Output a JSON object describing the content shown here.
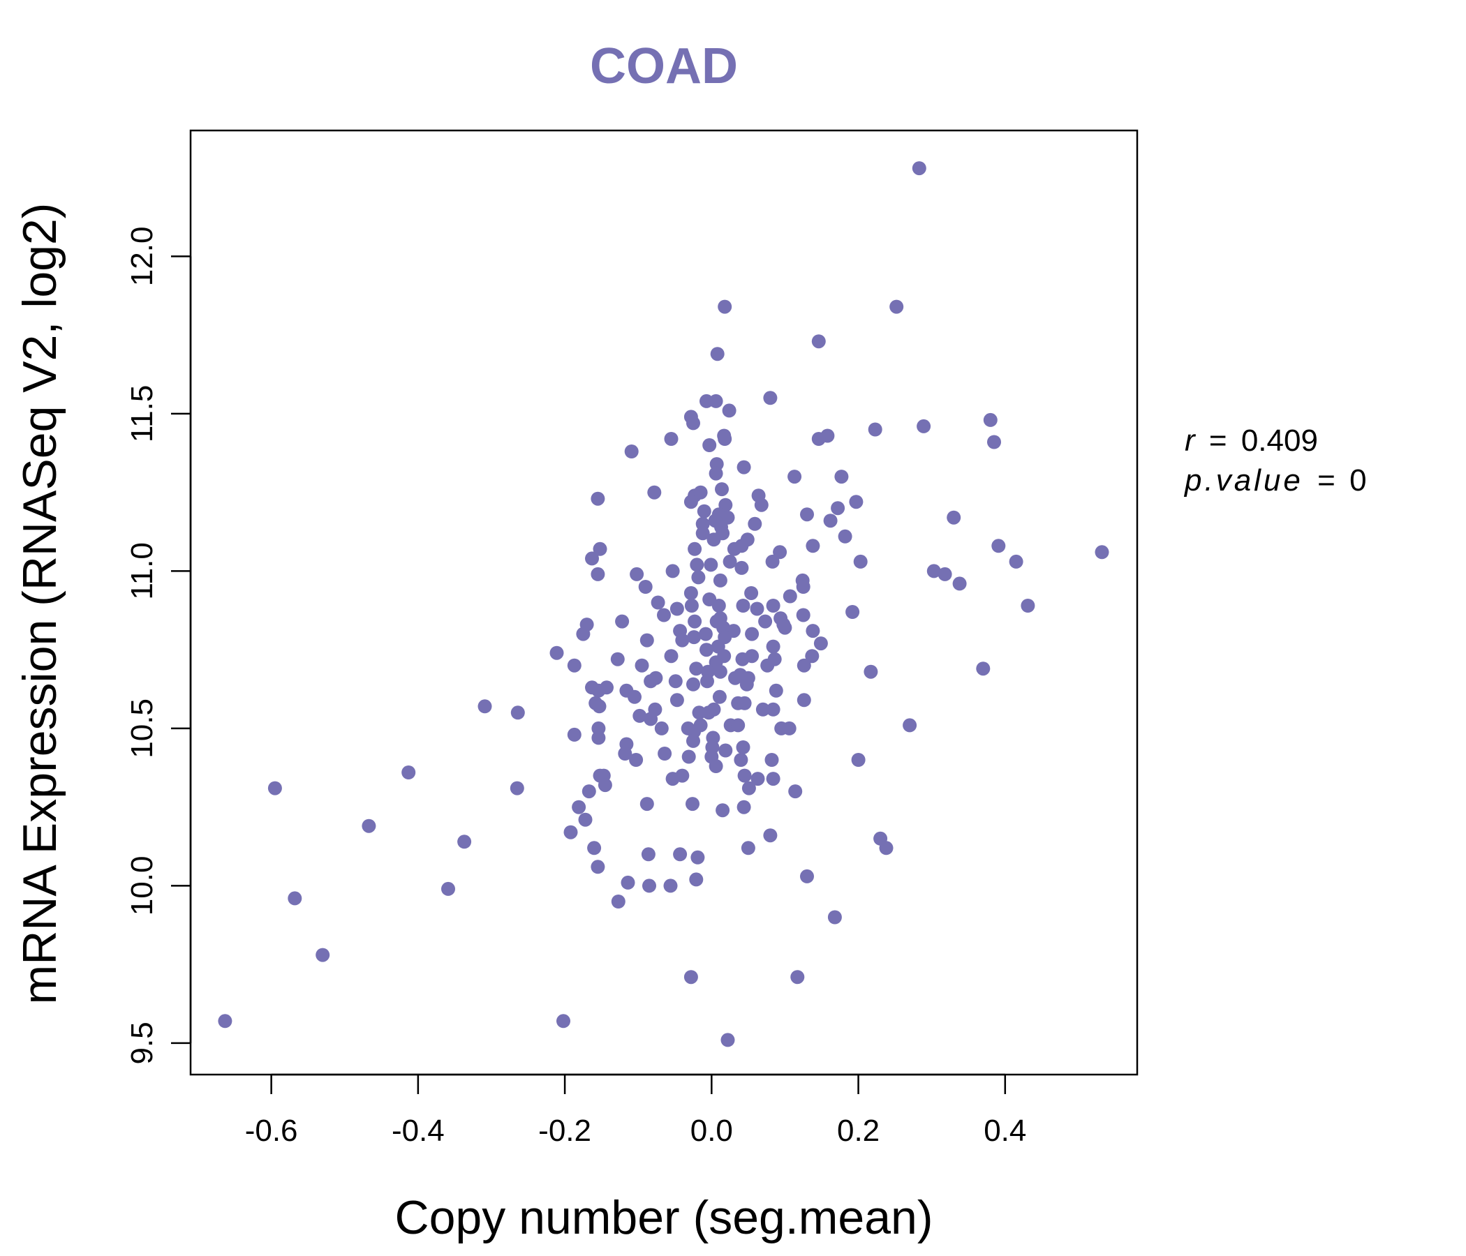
{
  "chart_data": {
    "type": "scatter",
    "title": "COAD",
    "xlabel": "Copy number (seg.mean)",
    "ylabel": "mRNA Expression (RNASeq V2, log2)",
    "xlim": [
      -0.71,
      0.58
    ],
    "ylim": [
      9.4,
      12.4
    ],
    "x_ticks": [
      -0.6,
      -0.4,
      -0.2,
      0.0,
      0.2,
      0.4
    ],
    "x_tick_labels": [
      "-0.6",
      "-0.4",
      "-0.2",
      "0.0",
      "0.2",
      "0.4"
    ],
    "y_ticks": [
      9.5,
      10.0,
      10.5,
      11.0,
      11.5,
      12.0
    ],
    "y_tick_labels": [
      "9.5",
      "10.0",
      "10.5",
      "11.0",
      "11.5",
      "12.0"
    ],
    "point_color": "#7570b3",
    "annotation": {
      "r_label": "r",
      "r_value": "0.409",
      "p_label": "p.value",
      "p_value": "0",
      "equals": "="
    },
    "points": [
      [
        0.283,
        12.28
      ],
      [
        0.252,
        11.84
      ],
      [
        0.018,
        11.84
      ],
      [
        0.146,
        11.73
      ],
      [
        0.008,
        11.69
      ],
      [
        0.08,
        11.55
      ],
      [
        -0.007,
        11.54
      ],
      [
        0.006,
        11.54
      ],
      [
        0.024,
        11.51
      ],
      [
        -0.028,
        11.49
      ],
      [
        -0.025,
        11.47
      ],
      [
        0.289,
        11.46
      ],
      [
        0.38,
        11.48
      ],
      [
        0.223,
        11.45
      ],
      [
        0.158,
        11.43
      ],
      [
        0.146,
        11.42
      ],
      [
        -0.055,
        11.42
      ],
      [
        0.017,
        11.43
      ],
      [
        0.018,
        11.42
      ],
      [
        0.385,
        11.41
      ],
      [
        -0.003,
        11.4
      ],
      [
        -0.109,
        11.38
      ],
      [
        0.007,
        11.34
      ],
      [
        0.044,
        11.33
      ],
      [
        0.006,
        11.31
      ],
      [
        0.113,
        11.3
      ],
      [
        0.177,
        11.3
      ],
      [
        0.014,
        11.26
      ],
      [
        -0.078,
        11.25
      ],
      [
        -0.023,
        11.24
      ],
      [
        -0.015,
        11.25
      ],
      [
        0.064,
        11.24
      ],
      [
        -0.155,
        11.23
      ],
      [
        0.197,
        11.22
      ],
      [
        0.068,
        11.21
      ],
      [
        0.172,
        11.2
      ],
      [
        -0.028,
        11.22
      ],
      [
        0.019,
        11.21
      ],
      [
        0.01,
        11.18
      ],
      [
        -0.01,
        11.19
      ],
      [
        0.13,
        11.18
      ],
      [
        0.33,
        11.17
      ],
      [
        0.022,
        11.17
      ],
      [
        0.162,
        11.16
      ],
      [
        0.059,
        11.15
      ],
      [
        -0.012,
        11.15
      ],
      [
        0.005,
        11.16
      ],
      [
        0.013,
        11.14
      ],
      [
        -0.012,
        11.12
      ],
      [
        0.015,
        11.12
      ],
      [
        0.182,
        11.11
      ],
      [
        0.003,
        11.1
      ],
      [
        0.049,
        11.1
      ],
      [
        0.041,
        11.08
      ],
      [
        -0.023,
        11.07
      ],
      [
        0.031,
        11.07
      ],
      [
        0.138,
        11.08
      ],
      [
        0.391,
        11.08
      ],
      [
        -0.152,
        11.07
      ],
      [
        0.532,
        11.06
      ],
      [
        0.093,
        11.06
      ],
      [
        -0.163,
        11.04
      ],
      [
        0.025,
        11.03
      ],
      [
        0.083,
        11.03
      ],
      [
        0.203,
        11.03
      ],
      [
        0.415,
        11.03
      ],
      [
        -0.02,
        11.02
      ],
      [
        -0.001,
        11.02
      ],
      [
        0.041,
        11.01
      ],
      [
        0.303,
        11.0
      ],
      [
        -0.053,
        11.0
      ],
      [
        0.318,
        10.99
      ],
      [
        -0.155,
        10.99
      ],
      [
        -0.102,
        10.99
      ],
      [
        -0.018,
        10.98
      ],
      [
        0.012,
        10.97
      ],
      [
        0.124,
        10.97
      ],
      [
        0.338,
        10.96
      ],
      [
        0.125,
        10.95
      ],
      [
        -0.09,
        10.95
      ],
      [
        -0.028,
        10.93
      ],
      [
        0.054,
        10.93
      ],
      [
        0.107,
        10.92
      ],
      [
        -0.003,
        10.91
      ],
      [
        0.01,
        10.89
      ],
      [
        -0.073,
        10.9
      ],
      [
        0.043,
        10.89
      ],
      [
        0.084,
        10.89
      ],
      [
        0.431,
        10.89
      ],
      [
        -0.027,
        10.89
      ],
      [
        -0.047,
        10.88
      ],
      [
        0.062,
        10.88
      ],
      [
        0.192,
        10.87
      ],
      [
        -0.065,
        10.86
      ],
      [
        0.125,
        10.86
      ],
      [
        0.012,
        10.85
      ],
      [
        0.094,
        10.85
      ],
      [
        -0.122,
        10.84
      ],
      [
        -0.023,
        10.84
      ],
      [
        0.007,
        10.84
      ],
      [
        0.073,
        10.84
      ],
      [
        0.098,
        10.83
      ],
      [
        0.1,
        10.82
      ],
      [
        -0.17,
        10.83
      ],
      [
        0.016,
        10.82
      ],
      [
        -0.043,
        10.81
      ],
      [
        0.03,
        10.81
      ],
      [
        0.138,
        10.81
      ],
      [
        -0.175,
        10.8
      ],
      [
        0.055,
        10.8
      ],
      [
        0.018,
        10.79
      ],
      [
        -0.008,
        10.8
      ],
      [
        -0.024,
        10.79
      ],
      [
        -0.088,
        10.78
      ],
      [
        -0.04,
        10.78
      ],
      [
        0.149,
        10.77
      ],
      [
        0.084,
        10.76
      ],
      [
        0.009,
        10.76
      ],
      [
        -0.007,
        10.75
      ],
      [
        -0.211,
        10.74
      ],
      [
        0.017,
        10.73
      ],
      [
        0.055,
        10.73
      ],
      [
        0.042,
        10.72
      ],
      [
        0.137,
        10.73
      ],
      [
        -0.055,
        10.73
      ],
      [
        0.086,
        10.72
      ],
      [
        -0.128,
        10.72
      ],
      [
        0.006,
        10.71
      ],
      [
        -0.187,
        10.7
      ],
      [
        0.076,
        10.7
      ],
      [
        0.126,
        10.7
      ],
      [
        -0.095,
        10.7
      ],
      [
        -0.021,
        10.69
      ],
      [
        0.37,
        10.69
      ],
      [
        -0.005,
        10.68
      ],
      [
        0.012,
        10.68
      ],
      [
        0.039,
        10.67
      ],
      [
        0.217,
        10.68
      ],
      [
        -0.076,
        10.66
      ],
      [
        0.032,
        10.66
      ],
      [
        0.05,
        10.66
      ],
      [
        -0.083,
        10.65
      ],
      [
        -0.049,
        10.65
      ],
      [
        -0.006,
        10.65
      ],
      [
        0.048,
        10.64
      ],
      [
        -0.025,
        10.64
      ],
      [
        -0.163,
        10.63
      ],
      [
        -0.143,
        10.63
      ],
      [
        -0.154,
        10.62
      ],
      [
        -0.116,
        10.62
      ],
      [
        0.088,
        10.62
      ],
      [
        0.011,
        10.6
      ],
      [
        -0.105,
        10.6
      ],
      [
        0.126,
        10.59
      ],
      [
        -0.047,
        10.59
      ],
      [
        -0.158,
        10.58
      ],
      [
        0.036,
        10.58
      ],
      [
        -0.309,
        10.57
      ],
      [
        0.045,
        10.58
      ],
      [
        -0.153,
        10.57
      ],
      [
        0.003,
        10.56
      ],
      [
        0.07,
        10.56
      ],
      [
        0.084,
        10.56
      ],
      [
        -0.077,
        10.56
      ],
      [
        -0.017,
        10.55
      ],
      [
        -0.004,
        10.55
      ],
      [
        -0.264,
        10.55
      ],
      [
        -0.098,
        10.54
      ],
      [
        -0.083,
        10.53
      ],
      [
        0.026,
        10.51
      ],
      [
        0.036,
        10.51
      ],
      [
        -0.015,
        10.51
      ],
      [
        0.095,
        10.5
      ],
      [
        0.106,
        10.5
      ],
      [
        -0.068,
        10.5
      ],
      [
        -0.032,
        10.5
      ],
      [
        -0.154,
        10.5
      ],
      [
        -0.024,
        10.49
      ],
      [
        0.27,
        10.51
      ],
      [
        -0.187,
        10.48
      ],
      [
        -0.154,
        10.47
      ],
      [
        0.002,
        10.47
      ],
      [
        -0.025,
        10.46
      ],
      [
        -0.116,
        10.45
      ],
      [
        0.043,
        10.44
      ],
      [
        0.001,
        10.44
      ],
      [
        0.019,
        10.43
      ],
      [
        -0.118,
        10.42
      ],
      [
        -0.064,
        10.42
      ],
      [
        -0.031,
        10.41
      ],
      [
        0.0,
        10.41
      ],
      [
        0.2,
        10.4
      ],
      [
        0.04,
        10.4
      ],
      [
        -0.103,
        10.4
      ],
      [
        0.082,
        10.4
      ],
      [
        0.006,
        10.38
      ],
      [
        -0.413,
        10.36
      ],
      [
        -0.152,
        10.35
      ],
      [
        0.045,
        10.35
      ],
      [
        -0.147,
        10.35
      ],
      [
        -0.04,
        10.35
      ],
      [
        -0.053,
        10.34
      ],
      [
        0.063,
        10.34
      ],
      [
        0.084,
        10.34
      ],
      [
        -0.145,
        10.32
      ],
      [
        0.051,
        10.31
      ],
      [
        -0.265,
        10.31
      ],
      [
        -0.595,
        10.31
      ],
      [
        -0.167,
        10.3
      ],
      [
        0.114,
        10.3
      ],
      [
        -0.088,
        10.26
      ],
      [
        -0.026,
        10.26
      ],
      [
        0.044,
        10.25
      ],
      [
        -0.181,
        10.25
      ],
      [
        0.015,
        10.24
      ],
      [
        -0.172,
        10.21
      ],
      [
        -0.467,
        10.19
      ],
      [
        -0.192,
        10.17
      ],
      [
        0.08,
        10.16
      ],
      [
        0.23,
        10.15
      ],
      [
        -0.337,
        10.14
      ],
      [
        0.05,
        10.12
      ],
      [
        -0.16,
        10.12
      ],
      [
        0.238,
        10.12
      ],
      [
        -0.086,
        10.1
      ],
      [
        -0.043,
        10.1
      ],
      [
        -0.019,
        10.09
      ],
      [
        -0.155,
        10.06
      ],
      [
        0.13,
        10.03
      ],
      [
        -0.021,
        10.02
      ],
      [
        -0.114,
        10.01
      ],
      [
        -0.085,
        10.0
      ],
      [
        -0.056,
        10.0
      ],
      [
        -0.359,
        9.99
      ],
      [
        -0.568,
        9.96
      ],
      [
        -0.127,
        9.95
      ],
      [
        0.168,
        9.9
      ],
      [
        -0.53,
        9.78
      ],
      [
        -0.028,
        9.71
      ],
      [
        0.117,
        9.71
      ],
      [
        -0.663,
        9.57
      ],
      [
        -0.202,
        9.57
      ],
      [
        0.022,
        9.51
      ]
    ]
  }
}
